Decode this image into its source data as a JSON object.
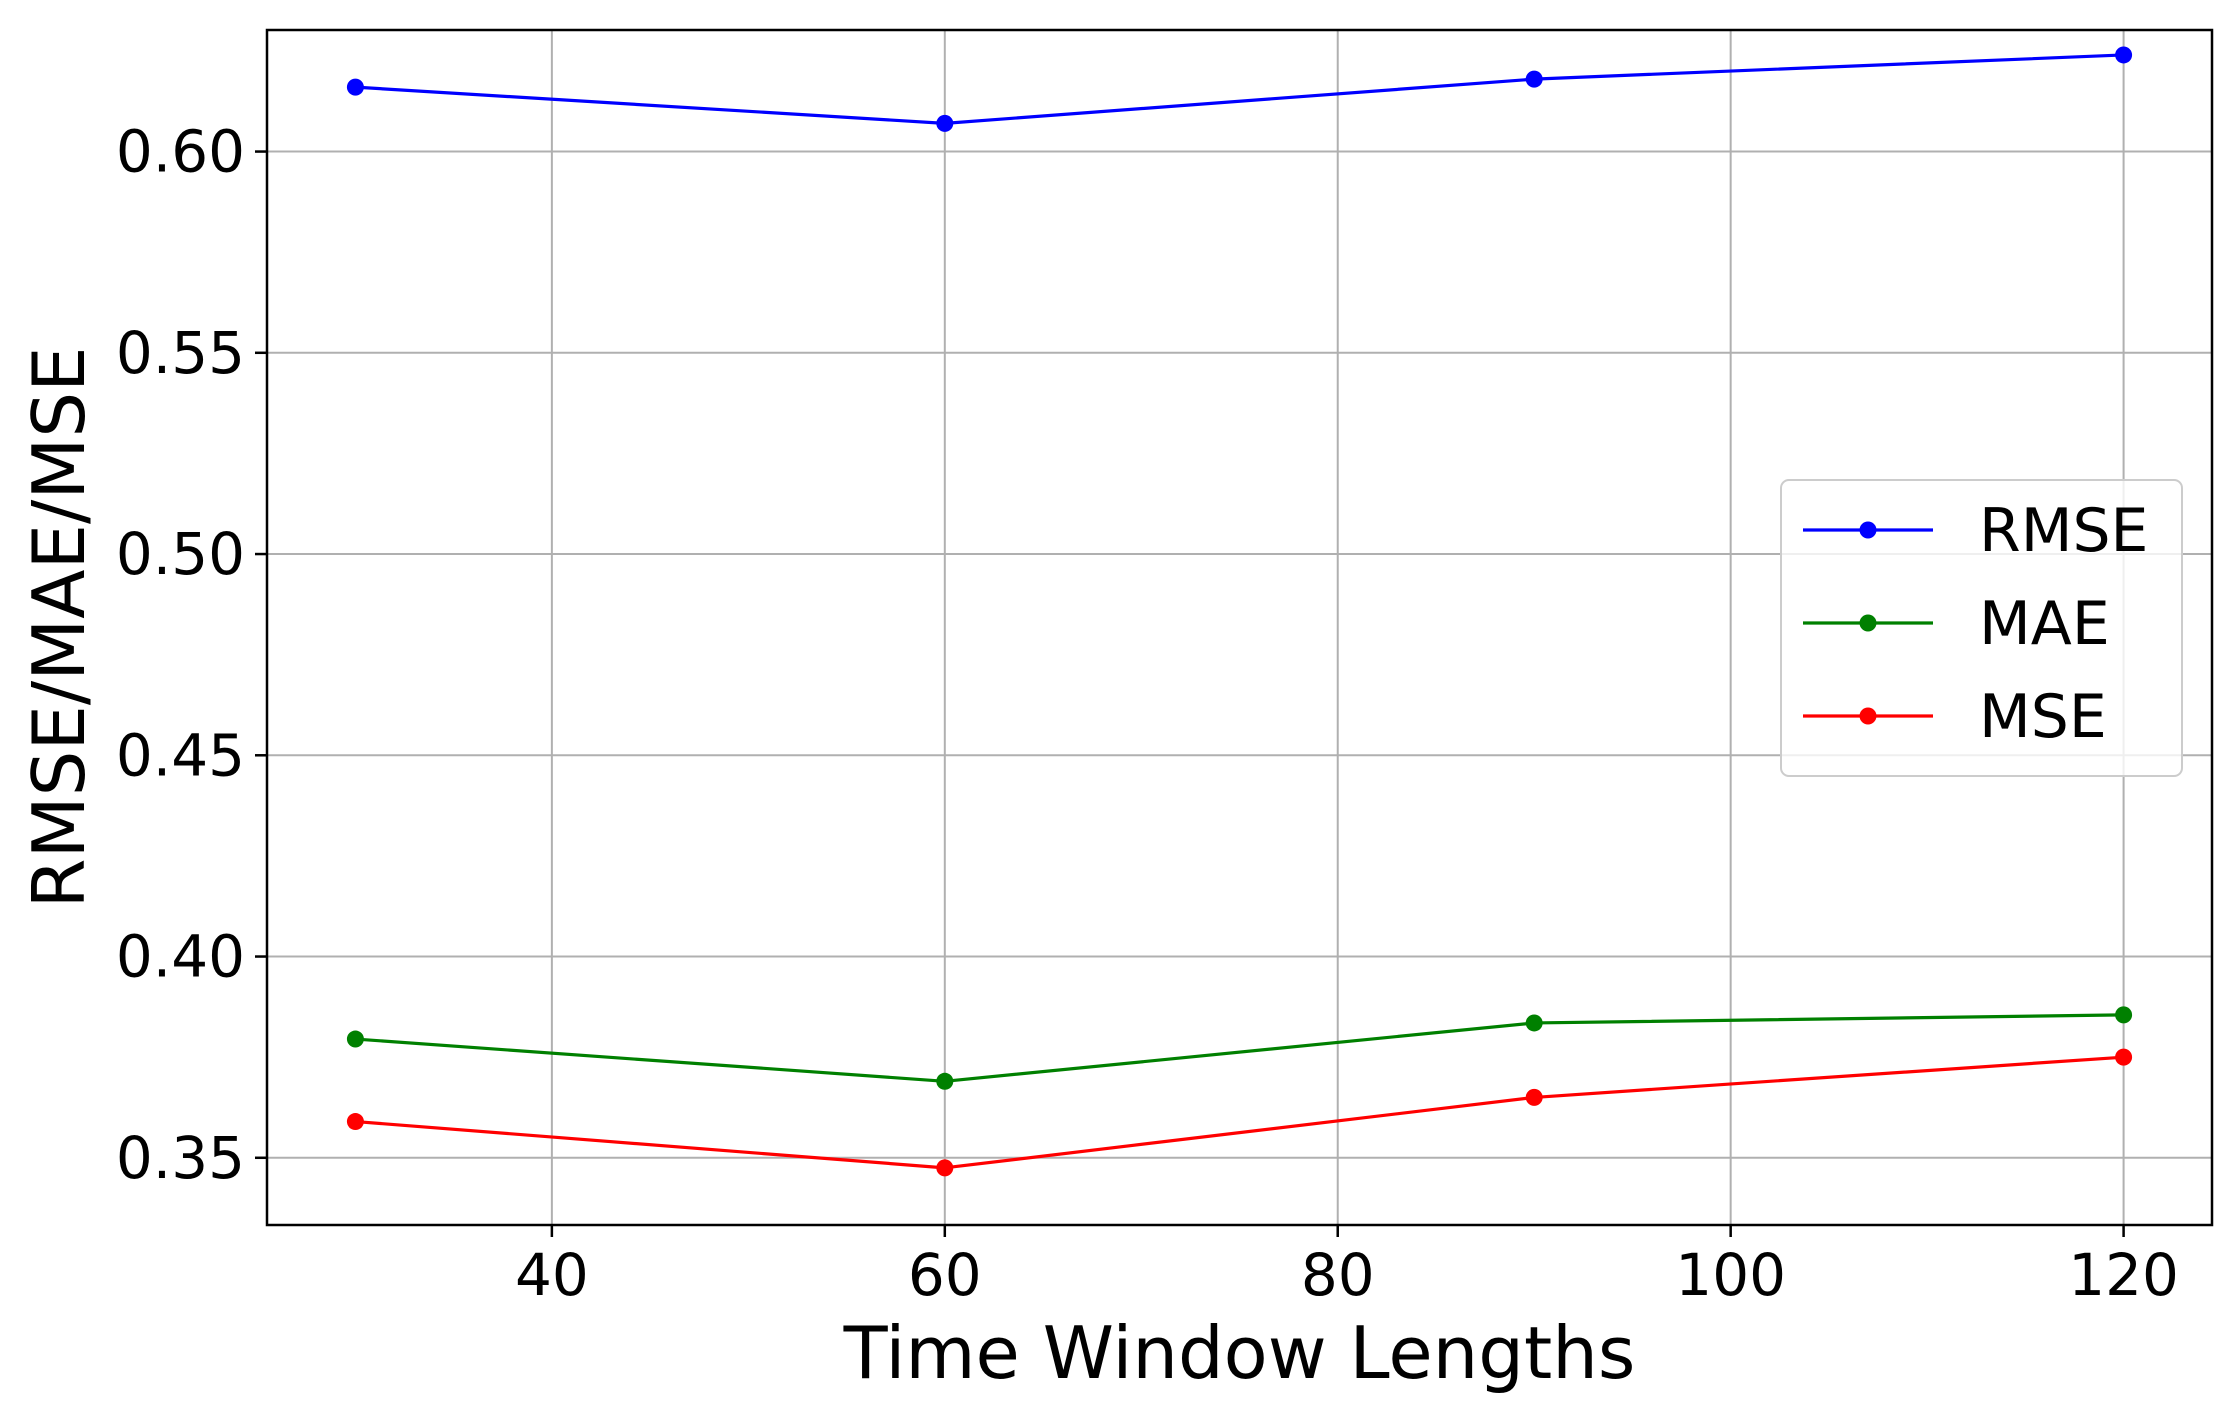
{
  "chart_data": {
    "type": "line",
    "title": "",
    "xlabel": "Time Window Lengths",
    "ylabel": "RMSE/MAE/MSE",
    "x": [
      30,
      60,
      90,
      120
    ],
    "xlim": [
      25.5,
      124.5
    ],
    "ylim": [
      0.3333,
      0.6302
    ],
    "xticks": [
      40,
      60,
      80,
      100,
      120
    ],
    "xtick_labels": [
      "40",
      "60",
      "80",
      "100",
      "120"
    ],
    "yticks": [
      0.35,
      0.4,
      0.45,
      0.5,
      0.55,
      0.6
    ],
    "ytick_labels": [
      "0.35",
      "0.40",
      "0.45",
      "0.50",
      "0.55",
      "0.60"
    ],
    "grid": true,
    "legend_position": "center-right",
    "series": [
      {
        "name": "RMSE",
        "color": "#0000ff",
        "marker": "circle",
        "values": [
          0.616,
          0.607,
          0.618,
          0.624
        ]
      },
      {
        "name": "MAE",
        "color": "#008000",
        "marker": "circle",
        "values": [
          0.3795,
          0.369,
          0.3835,
          0.3855
        ]
      },
      {
        "name": "MSE",
        "color": "#ff0000",
        "marker": "circle",
        "values": [
          0.359,
          0.3475,
          0.365,
          0.375
        ]
      }
    ]
  }
}
